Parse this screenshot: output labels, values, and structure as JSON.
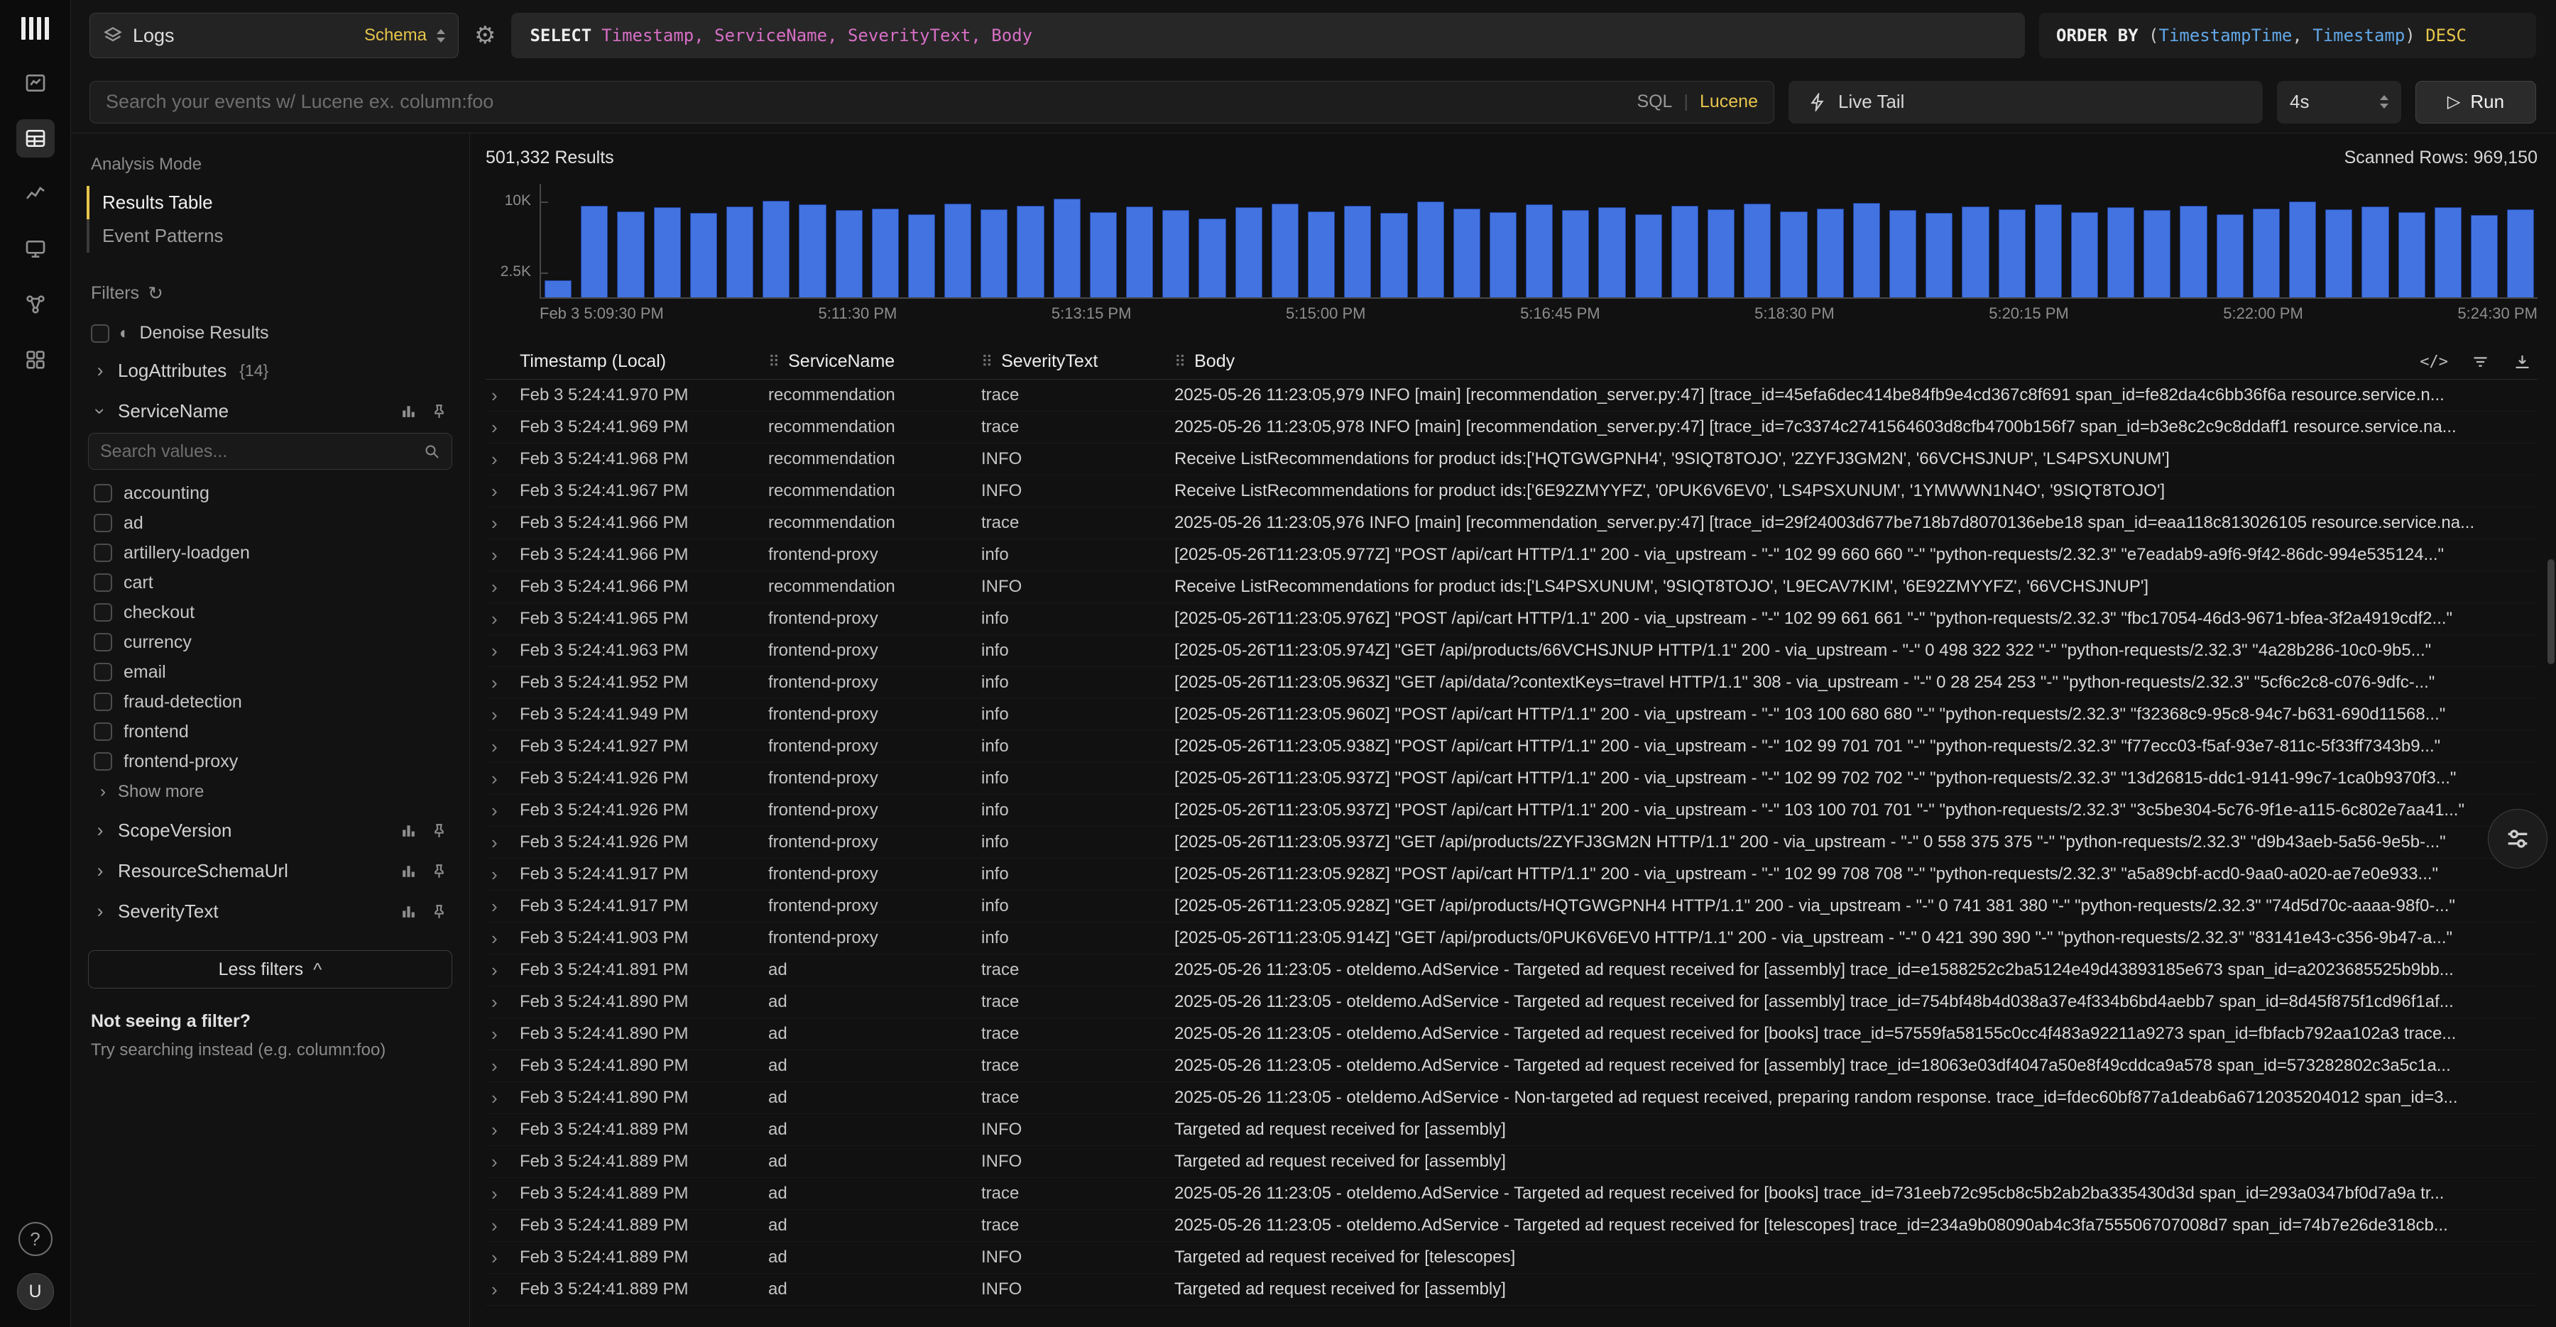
{
  "accent_color": "#e7c54b",
  "icons": {
    "gear": "⚙",
    "chevron_right": "›",
    "caret_up": "^",
    "play": "▷",
    "refresh": "↻",
    "denoise": "◐",
    "drag_handle": "⠿",
    "code": "</>",
    "mode_divider": "|",
    "question": "?"
  },
  "rail": {
    "avatar_initial": "U"
  },
  "topbar": {
    "source_label": "Logs",
    "source_badge": "Schema",
    "sql_keyword": "SELECT",
    "sql_columns": "Timestamp, ServiceName, SeverityText, Body",
    "orderby_keyword": "ORDER BY",
    "orderby_open": " (",
    "orderby_col1": "TimestampTime",
    "orderby_sep": ", ",
    "orderby_col2": "Timestamp",
    "orderby_close": ") ",
    "orderby_dir": "DESC"
  },
  "searchbar": {
    "placeholder": "Search your events w/ Lucene ex. column:foo",
    "mode_sql": "SQL",
    "mode_lucene": "Lucene",
    "live_tail_label": "Live Tail",
    "interval_value": "4s",
    "run_label": "Run"
  },
  "sidebar": {
    "analysis_mode_label": "Analysis Mode",
    "modes": [
      {
        "label": "Results Table",
        "active": true
      },
      {
        "label": "Event Patterns",
        "active": false
      }
    ],
    "filters_label": "Filters",
    "denoise_label": "Denoise Results",
    "log_attributes": {
      "name": "LogAttributes",
      "badge": "{14}"
    },
    "service_group": {
      "name": "ServiceName"
    },
    "search_values_placeholder": "Search values...",
    "service_values": [
      "accounting",
      "ad",
      "artillery-loadgen",
      "cart",
      "checkout",
      "currency",
      "email",
      "fraud-detection",
      "frontend",
      "frontend-proxy"
    ],
    "show_more_label": "Show more",
    "collapsed_groups": [
      "ScopeVersion",
      "ResourceSchemaUrl",
      "SeverityText"
    ],
    "less_filters_label": "Less filters",
    "footer_title": "Not seeing a filter?",
    "footer_hint": "Try searching instead (e.g. column:foo)"
  },
  "results_bar": {
    "count": "501,332 Results",
    "scanned": "Scanned Rows: 969,150"
  },
  "chart_data": {
    "type": "bar",
    "title": "",
    "x_labels": [
      "Feb 3 5:09:30 PM",
      "5:11:30 PM",
      "5:13:15 PM",
      "5:15:00 PM",
      "5:16:45 PM",
      "5:18:30 PM",
      "5:20:15 PM",
      "5:22:00 PM",
      "5:24:30 PM"
    ],
    "y_ticks": [
      "10K",
      "2.5K"
    ],
    "y_tick_values": [
      10000,
      2500
    ],
    "ylim": [
      0,
      12000
    ],
    "grid": false,
    "legend": false,
    "bar_color": "#4273e0",
    "bar_border_color": "#20409c",
    "values": [
      1800,
      9700,
      9100,
      9500,
      8900,
      9600,
      10200,
      9800,
      9200,
      9400,
      8800,
      9900,
      9300,
      9700,
      10400,
      9000,
      9600,
      9200,
      8300,
      9500,
      9900,
      9100,
      9700,
      8900,
      10100,
      9400,
      9000,
      9800,
      9200,
      9500,
      8800,
      9700,
      9300,
      9900,
      9100,
      9400,
      10000,
      9200,
      8900,
      9600,
      9300,
      9800,
      9000,
      9500,
      9200,
      9700,
      8800,
      9400,
      10100,
      9300,
      9600,
      9000,
      9500,
      8700,
      9300
    ]
  },
  "table": {
    "columns": [
      "Timestamp (Local)",
      "ServiceName",
      "SeverityText",
      "Body"
    ],
    "rows": [
      [
        "Feb 3 5:24:41.970 PM",
        "recommendation",
        "trace",
        "2025-05-26 11:23:05,979 INFO [main] [recommendation_server.py:47] [trace_id=45efa6dec414be84fb9e4cd367c8f691 span_id=fe82da4c6bb36f6a resource.service.n..."
      ],
      [
        "Feb 3 5:24:41.969 PM",
        "recommendation",
        "trace",
        "2025-05-26 11:23:05,978 INFO [main] [recommendation_server.py:47] [trace_id=7c3374c2741564603d8cfb4700b156f7 span_id=b3e8c2c9c8ddaff1 resource.service.na..."
      ],
      [
        "Feb 3 5:24:41.968 PM",
        "recommendation",
        "INFO",
        "Receive ListRecommendations for product ids:['HQTGWGPNH4', '9SIQT8TOJO', '2ZYFJ3GM2N', '66VCHSJNUP', 'LS4PSXUNUM']"
      ],
      [
        "Feb 3 5:24:41.967 PM",
        "recommendation",
        "INFO",
        "Receive ListRecommendations for product ids:['6E92ZMYYFZ', '0PUK6V6EV0', 'LS4PSXUNUM', '1YMWWN1N4O', '9SIQT8TOJO']"
      ],
      [
        "Feb 3 5:24:41.966 PM",
        "recommendation",
        "trace",
        "2025-05-26 11:23:05,976 INFO [main] [recommendation_server.py:47] [trace_id=29f24003d677be718b7d8070136ebe18 span_id=eaa118c813026105 resource.service.na..."
      ],
      [
        "Feb 3 5:24:41.966 PM",
        "frontend-proxy",
        "info",
        "[2025-05-26T11:23:05.977Z] \"POST /api/cart HTTP/1.1\" 200 - via_upstream - \"-\" 102 99 660 660 \"-\" \"python-requests/2.32.3\" \"e7eadab9-a9f6-9f42-86dc-994e535124...\""
      ],
      [
        "Feb 3 5:24:41.966 PM",
        "recommendation",
        "INFO",
        "Receive ListRecommendations for product ids:['LS4PSXUNUM', '9SIQT8TOJO', 'L9ECAV7KIM', '6E92ZMYYFZ', '66VCHSJNUP']"
      ],
      [
        "Feb 3 5:24:41.965 PM",
        "frontend-proxy",
        "info",
        "[2025-05-26T11:23:05.976Z] \"POST /api/cart HTTP/1.1\" 200 - via_upstream - \"-\" 102 99 661 661 \"-\" \"python-requests/2.32.3\" \"fbc17054-46d3-9671-bfea-3f2a4919cdf2...\""
      ],
      [
        "Feb 3 5:24:41.963 PM",
        "frontend-proxy",
        "info",
        "[2025-05-26T11:23:05.974Z] \"GET /api/products/66VCHSJNUP HTTP/1.1\" 200 - via_upstream - \"-\" 0 498 322 322 \"-\" \"python-requests/2.32.3\" \"4a28b286-10c0-9b5...\""
      ],
      [
        "Feb 3 5:24:41.952 PM",
        "frontend-proxy",
        "info",
        "[2025-05-26T11:23:05.963Z] \"GET /api/data/?contextKeys=travel HTTP/1.1\" 308 - via_upstream - \"-\" 0 28 254 253 \"-\" \"python-requests/2.32.3\" \"5cf6c2c8-c076-9dfc-...\""
      ],
      [
        "Feb 3 5:24:41.949 PM",
        "frontend-proxy",
        "info",
        "[2025-05-26T11:23:05.960Z] \"POST /api/cart HTTP/1.1\" 200 - via_upstream - \"-\" 103 100 680 680 \"-\" \"python-requests/2.32.3\" \"f32368c9-95c8-94c7-b631-690d11568...\""
      ],
      [
        "Feb 3 5:24:41.927 PM",
        "frontend-proxy",
        "info",
        "[2025-05-26T11:23:05.938Z] \"POST /api/cart HTTP/1.1\" 200 - via_upstream - \"-\" 102 99 701 701 \"-\" \"python-requests/2.32.3\" \"f77ecc03-f5af-93e7-811c-5f33ff7343b9...\""
      ],
      [
        "Feb 3 5:24:41.926 PM",
        "frontend-proxy",
        "info",
        "[2025-05-26T11:23:05.937Z] \"POST /api/cart HTTP/1.1\" 200 - via_upstream - \"-\" 102 99 702 702 \"-\" \"python-requests/2.32.3\" \"13d26815-ddc1-9141-99c7-1ca0b9370f3...\""
      ],
      [
        "Feb 3 5:24:41.926 PM",
        "frontend-proxy",
        "info",
        "[2025-05-26T11:23:05.937Z] \"POST /api/cart HTTP/1.1\" 200 - via_upstream - \"-\" 103 100 701 701 \"-\" \"python-requests/2.32.3\" \"3c5be304-5c76-9f1e-a115-6c802e7aa41...\""
      ],
      [
        "Feb 3 5:24:41.926 PM",
        "frontend-proxy",
        "info",
        "[2025-05-26T11:23:05.937Z] \"GET /api/products/2ZYFJ3GM2N HTTP/1.1\" 200 - via_upstream - \"-\" 0 558 375 375 \"-\" \"python-requests/2.32.3\" \"d9b43aeb-5a56-9e5b-...\""
      ],
      [
        "Feb 3 5:24:41.917 PM",
        "frontend-proxy",
        "info",
        "[2025-05-26T11:23:05.928Z] \"POST /api/cart HTTP/1.1\" 200 - via_upstream - \"-\" 102 99 708 708 \"-\" \"python-requests/2.32.3\" \"a5a89cbf-acd0-9aa0-a020-ae7e0e933...\""
      ],
      [
        "Feb 3 5:24:41.917 PM",
        "frontend-proxy",
        "info",
        "[2025-05-26T11:23:05.928Z] \"GET /api/products/HQTGWGPNH4 HTTP/1.1\" 200 - via_upstream - \"-\" 0 741 381 380 \"-\" \"python-requests/2.32.3\" \"74d5d70c-aaaa-98f0-...\""
      ],
      [
        "Feb 3 5:24:41.903 PM",
        "frontend-proxy",
        "info",
        "[2025-05-26T11:23:05.914Z] \"GET /api/products/0PUK6V6EV0 HTTP/1.1\" 200 - via_upstream - \"-\" 0 421 390 390 \"-\" \"python-requests/2.32.3\" \"83141e43-c356-9b47-a...\""
      ],
      [
        "Feb 3 5:24:41.891 PM",
        "ad",
        "trace",
        "2025-05-26 11:23:05 - oteldemo.AdService - Targeted ad request received for [assembly] trace_id=e1588252c2ba5124e49d43893185e673 span_id=a2023685525b9bb..."
      ],
      [
        "Feb 3 5:24:41.890 PM",
        "ad",
        "trace",
        "2025-05-26 11:23:05 - oteldemo.AdService - Targeted ad request received for [assembly] trace_id=754bf48b4d038a37e4f334b6bd4aebb7 span_id=8d45f875f1cd96f1af..."
      ],
      [
        "Feb 3 5:24:41.890 PM",
        "ad",
        "trace",
        "2025-05-26 11:23:05 - oteldemo.AdService - Targeted ad request received for [books] trace_id=57559fa58155c0cc4f483a92211a9273 span_id=fbfacb792aa102a3 trace..."
      ],
      [
        "Feb 3 5:24:41.890 PM",
        "ad",
        "trace",
        "2025-05-26 11:23:05 - oteldemo.AdService - Targeted ad request received for [assembly] trace_id=18063e03df4047a50e8f49cddca9a578 span_id=573282802c3a5c1a..."
      ],
      [
        "Feb 3 5:24:41.890 PM",
        "ad",
        "trace",
        "2025-05-26 11:23:05 - oteldemo.AdService - Non-targeted ad request received, preparing random response. trace_id=fdec60bf877a1deab6a6712035204012 span_id=3..."
      ],
      [
        "Feb 3 5:24:41.889 PM",
        "ad",
        "INFO",
        "Targeted ad request received for [assembly]"
      ],
      [
        "Feb 3 5:24:41.889 PM",
        "ad",
        "INFO",
        "Targeted ad request received for [assembly]"
      ],
      [
        "Feb 3 5:24:41.889 PM",
        "ad",
        "trace",
        "2025-05-26 11:23:05 - oteldemo.AdService - Targeted ad request received for [books] trace_id=731eeb72c95cb8c5b2ab2ba335430d3d span_id=293a0347bf0d7a9a tr..."
      ],
      [
        "Feb 3 5:24:41.889 PM",
        "ad",
        "trace",
        "2025-05-26 11:23:05 - oteldemo.AdService - Targeted ad request received for [telescopes] trace_id=234a9b08090ab4c3fa755506707008d7 span_id=74b7e26de318cb..."
      ],
      [
        "Feb 3 5:24:41.889 PM",
        "ad",
        "INFO",
        "Targeted ad request received for [telescopes]"
      ],
      [
        "Feb 3 5:24:41.889 PM",
        "ad",
        "INFO",
        "Targeted ad request received for [assembly]"
      ]
    ]
  }
}
